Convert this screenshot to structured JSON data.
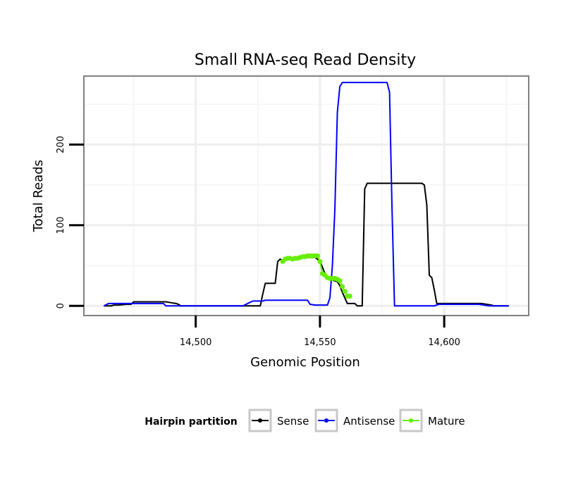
{
  "chart_data": {
    "type": "line",
    "title": "Small RNA-seq Read Density",
    "xlabel": "Genomic Position",
    "ylabel": "Total Reads",
    "xlim": [
      14455,
      14634
    ],
    "ylim": [
      -12,
      285
    ],
    "x_ticks": [
      14500,
      14550,
      14600
    ],
    "x_tick_labels": [
      "14,500",
      "14,550",
      "14,600"
    ],
    "y_ticks": [
      0,
      100,
      200
    ],
    "y_tick_labels": [
      "0",
      "100",
      "200"
    ],
    "grid": true,
    "legend": {
      "title": "Hairpin partition",
      "position": "bottom",
      "entries": [
        "Sense",
        "Antisense",
        "Mature"
      ]
    },
    "series": [
      {
        "name": "Sense",
        "color": "#000000",
        "style": "line",
        "points": [
          [
            14463,
            0
          ],
          [
            14466,
            0
          ],
          [
            14467,
            1
          ],
          [
            14469,
            1
          ],
          [
            14472,
            2
          ],
          [
            14474,
            2
          ],
          [
            14475,
            5
          ],
          [
            14488,
            5
          ],
          [
            14490,
            4
          ],
          [
            14492,
            3
          ],
          [
            14493,
            2
          ],
          [
            14494,
            0
          ],
          [
            14526,
            0
          ],
          [
            14527,
            15
          ],
          [
            14528,
            28
          ],
          [
            14532,
            28
          ],
          [
            14533,
            55
          ],
          [
            14534,
            58
          ],
          [
            14535,
            56
          ],
          [
            14536,
            57
          ],
          [
            14538,
            57
          ],
          [
            14540,
            58
          ],
          [
            14542,
            60
          ],
          [
            14548,
            60
          ],
          [
            14549,
            58
          ],
          [
            14550,
            55
          ],
          [
            14551,
            48
          ],
          [
            14552,
            40
          ],
          [
            14553,
            34
          ],
          [
            14555,
            32
          ],
          [
            14557,
            30
          ],
          [
            14558,
            25
          ],
          [
            14559,
            17
          ],
          [
            14560,
            10
          ],
          [
            14561,
            3
          ],
          [
            14564,
            3
          ],
          [
            14565,
            0
          ],
          [
            14567,
            0
          ],
          [
            14568,
            145
          ],
          [
            14569,
            152
          ],
          [
            14591,
            152
          ],
          [
            14592,
            150
          ],
          [
            14593,
            125
          ],
          [
            14594,
            38
          ],
          [
            14595,
            35
          ],
          [
            14596,
            20
          ],
          [
            14597,
            3
          ],
          [
            14615,
            3
          ],
          [
            14617,
            2
          ],
          [
            14619,
            1
          ],
          [
            14620,
            0
          ],
          [
            14626,
            0
          ]
        ]
      },
      {
        "name": "Antisense",
        "color": "#0000ff",
        "style": "line",
        "points": [
          [
            14463,
            0
          ],
          [
            14465,
            3
          ],
          [
            14478,
            3
          ],
          [
            14487,
            3
          ],
          [
            14488,
            0
          ],
          [
            14497,
            0
          ],
          [
            14519,
            0
          ],
          [
            14521,
            3
          ],
          [
            14523,
            6
          ],
          [
            14527,
            6
          ],
          [
            14528,
            7
          ],
          [
            14545,
            7
          ],
          [
            14546,
            2
          ],
          [
            14548,
            1
          ],
          [
            14553,
            1
          ],
          [
            14554,
            10
          ],
          [
            14555,
            50
          ],
          [
            14556,
            120
          ],
          [
            14557,
            240
          ],
          [
            14558,
            272
          ],
          [
            14559,
            277
          ],
          [
            14560,
            277
          ],
          [
            14577,
            277
          ],
          [
            14578,
            265
          ],
          [
            14579,
            120
          ],
          [
            14580,
            0
          ],
          [
            14596,
            0
          ],
          [
            14598,
            2
          ],
          [
            14614,
            2
          ],
          [
            14616,
            1
          ],
          [
            14618,
            0
          ],
          [
            14626,
            0
          ]
        ]
      },
      {
        "name": "Mature",
        "color": "#66ee00",
        "style": "line-points",
        "points": [
          [
            14535,
            55
          ],
          [
            14536,
            58
          ],
          [
            14537,
            59
          ],
          [
            14538,
            59
          ],
          [
            14539,
            58
          ],
          [
            14540,
            59
          ],
          [
            14541,
            59
          ],
          [
            14542,
            60
          ],
          [
            14543,
            61
          ],
          [
            14544,
            61
          ],
          [
            14545,
            62
          ],
          [
            14546,
            62
          ],
          [
            14547,
            62
          ],
          [
            14548,
            62
          ],
          [
            14549,
            62
          ],
          [
            14550,
            55
          ],
          [
            14551,
            40
          ],
          [
            14552,
            38
          ],
          [
            14553,
            35
          ],
          [
            14554,
            34
          ],
          [
            14555,
            34
          ],
          [
            14556,
            34
          ],
          [
            14557,
            33
          ],
          [
            14558,
            31
          ],
          [
            14559,
            24
          ],
          [
            14560,
            18
          ],
          [
            14561,
            12
          ],
          [
            14562,
            12
          ]
        ]
      }
    ]
  }
}
